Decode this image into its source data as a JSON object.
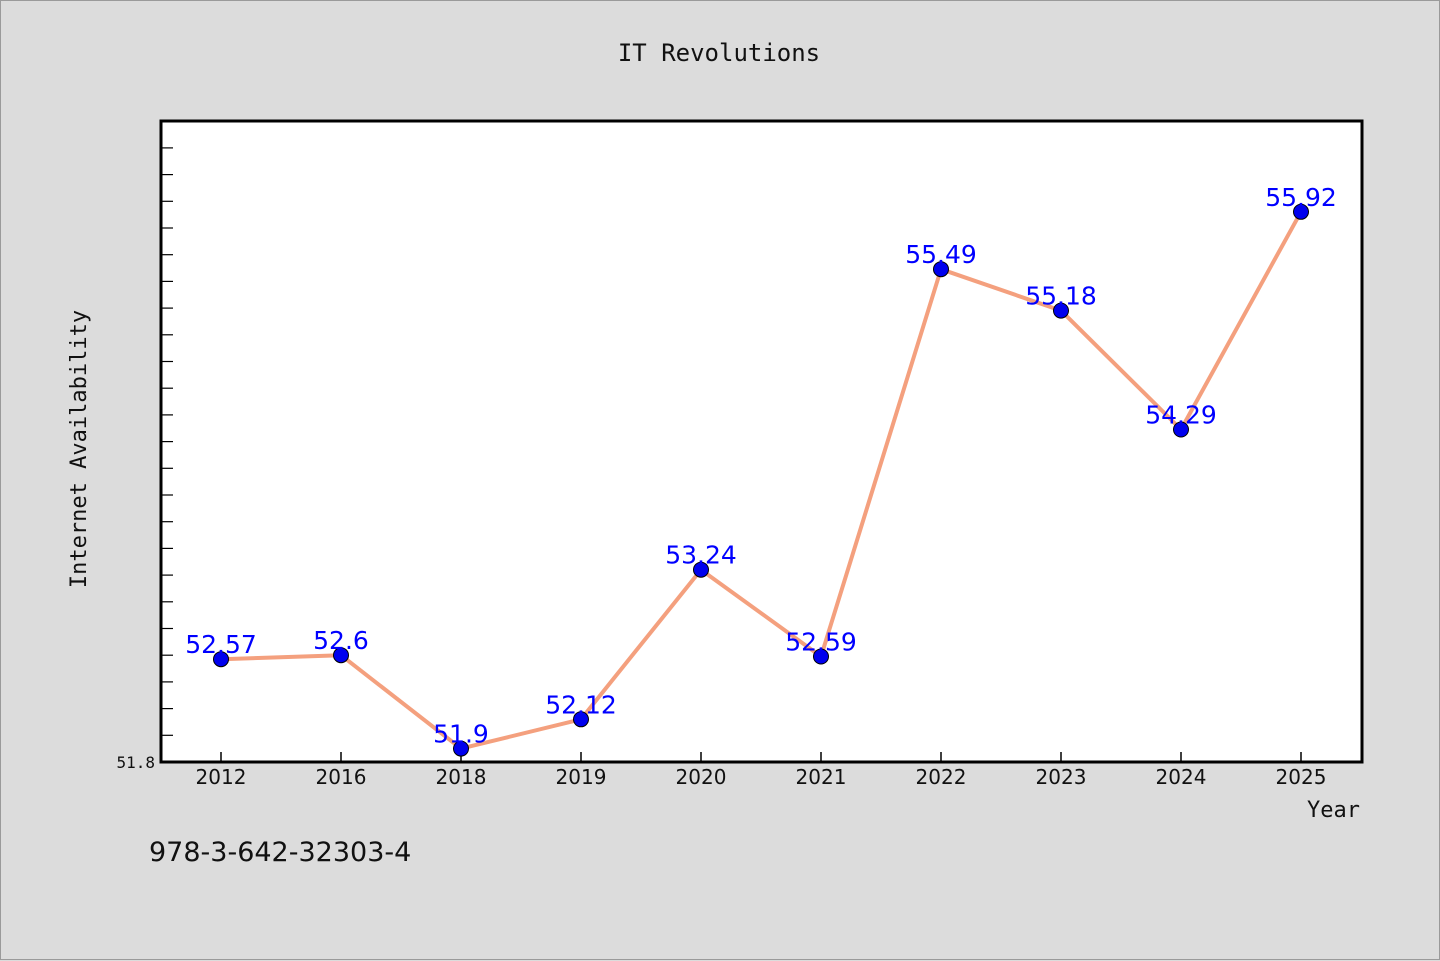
{
  "chart_data": {
    "type": "line",
    "title": "IT Revolutions",
    "xlabel": "Year",
    "ylabel": "Internet Availability",
    "categories": [
      "2012",
      "2016",
      "2018",
      "2019",
      "2020",
      "2021",
      "2022",
      "2023",
      "2024",
      "2025"
    ],
    "series": [
      {
        "values": [
          52.57,
          52.6,
          51.9,
          52.12,
          53.24,
          52.59,
          55.49,
          55.18,
          54.29,
          55.92
        ]
      }
    ],
    "y_min_label": "51.8",
    "ylim": [
      51.8,
      56.6
    ],
    "grid": false,
    "data_labels": [
      "52.57",
      "52.6",
      "51.9",
      "52.12",
      "53.24",
      "52.59",
      "55.49",
      "55.18",
      "54.29",
      "55.92"
    ],
    "colors": {
      "line": "#f4a07e",
      "marker": "#0000ee",
      "label": "#0000ff",
      "plot_bg": "#ffffff",
      "page_bg": "#dcdcdc"
    }
  },
  "footer": {
    "isbn": "978-3-642-32303-4"
  }
}
